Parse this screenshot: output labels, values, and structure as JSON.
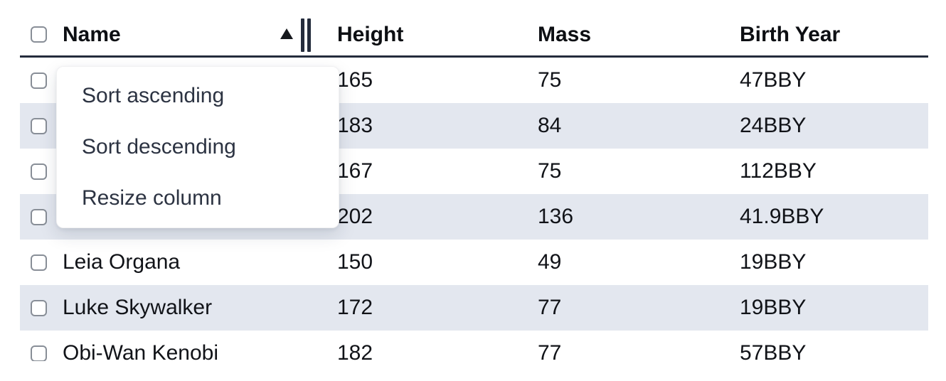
{
  "table": {
    "columns": {
      "select_all": {
        "checked": false
      },
      "name": {
        "label": "Name",
        "sorted": "ascending",
        "sort_indicator": "triangle-up"
      },
      "height": {
        "label": "Height"
      },
      "mass": {
        "label": "Mass"
      },
      "birth_year": {
        "label": "Birth Year"
      }
    },
    "rows": [
      {
        "name": "",
        "height": "165",
        "mass": "75",
        "birth_year": "47BBY",
        "selected": false
      },
      {
        "name": "",
        "height": "183",
        "mass": "84",
        "birth_year": "24BBY",
        "selected": false
      },
      {
        "name": "",
        "height": "167",
        "mass": "75",
        "birth_year": "112BBY",
        "selected": false
      },
      {
        "name": "",
        "height": "202",
        "mass": "136",
        "birth_year": "41.9BBY",
        "selected": false
      },
      {
        "name": "Leia Organa",
        "height": "150",
        "mass": "49",
        "birth_year": "19BBY",
        "selected": false
      },
      {
        "name": "Luke Skywalker",
        "height": "172",
        "mass": "77",
        "birth_year": "19BBY",
        "selected": false
      },
      {
        "name": "Obi-Wan Kenobi",
        "height": "182",
        "mass": "77",
        "birth_year": "57BBY",
        "selected": false
      }
    ]
  },
  "menu": {
    "items": [
      {
        "label": "Sort ascending"
      },
      {
        "label": "Sort descending"
      },
      {
        "label": "Resize column"
      }
    ]
  },
  "colors": {
    "stripe": "#e3e7ef",
    "header_border": "#242c3c",
    "text": "#111318",
    "menu_text": "#2c3342",
    "checkbox_border": "#888e97"
  }
}
